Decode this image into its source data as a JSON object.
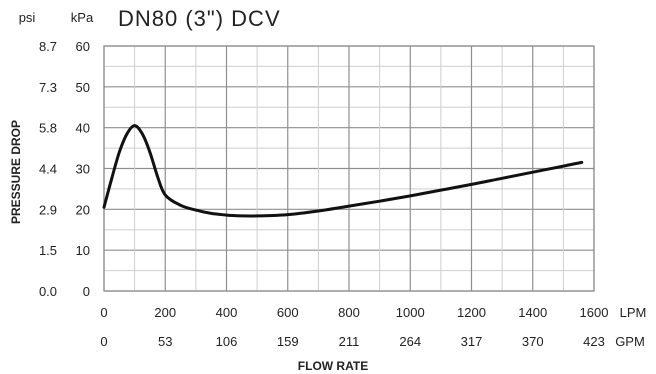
{
  "chart_data": {
    "type": "line",
    "title": "DN80 (3\") DCV",
    "xlabel": "FLOW RATE",
    "ylabel": "PRESSURE DROP",
    "xlim": [
      0,
      1600
    ],
    "ylim": [
      0,
      60
    ],
    "grid": true,
    "units": {
      "kpa": "kPa",
      "psi": "psi",
      "lpm": "LPM",
      "gpm": "GPM"
    },
    "x_ticks_lpm": [
      0,
      200,
      400,
      600,
      800,
      1000,
      1200,
      1400,
      1600
    ],
    "x_ticks_gpm_labels": [
      "0",
      "53",
      "106",
      "159",
      "211",
      "264",
      "317",
      "370",
      "423"
    ],
    "y_ticks_kpa": [
      0,
      10,
      20,
      30,
      40,
      50,
      60
    ],
    "y_ticks_psi_labels": [
      "0.0",
      "1.5",
      "2.9",
      "4.4",
      "5.8",
      "7.3",
      "8.7"
    ],
    "series": [
      {
        "x": [
          0,
          25,
          50,
          75,
          100,
          125,
          150,
          175,
          200,
          250,
          300,
          350,
          400,
          450,
          500,
          600,
          700,
          800,
          900,
          1000,
          1100,
          1200,
          1300,
          1400,
          1500,
          1560
        ],
        "y": [
          20.5,
          27.5,
          34.0,
          38.5,
          40.5,
          38.5,
          34.0,
          28.0,
          23.5,
          21.0,
          19.8,
          19.0,
          18.6,
          18.4,
          18.4,
          18.7,
          19.6,
          20.8,
          22.0,
          23.3,
          24.7,
          26.1,
          27.6,
          29.1,
          30.6,
          31.5
        ]
      }
    ]
  }
}
